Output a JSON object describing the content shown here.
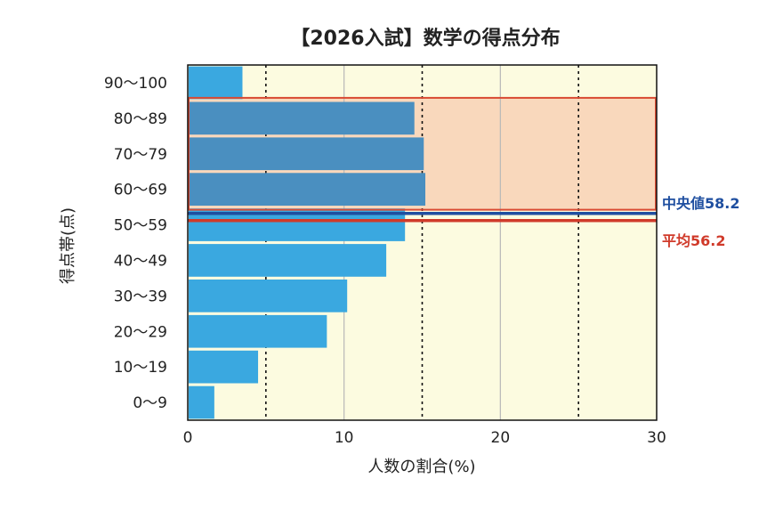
{
  "chart_data": {
    "type": "bar",
    "orientation": "horizontal",
    "title": "【2026入試】数学の得点分布",
    "xlabel": "人数の割合(%)",
    "ylabel": "得点帯(点)",
    "xlim": [
      0,
      30
    ],
    "x_ticks": [
      "0",
      "10",
      "20",
      "30"
    ],
    "categories": [
      "0〜9",
      "10〜19",
      "20〜29",
      "30〜39",
      "40〜49",
      "50〜59",
      "60〜69",
      "70〜79",
      "80〜89",
      "90〜100"
    ],
    "values": [
      1.7,
      4.5,
      8.9,
      10.2,
      12.7,
      13.9,
      15.2,
      15.1,
      14.5,
      3.5
    ],
    "highlight_categories": [
      "60〜69",
      "70〜79",
      "80〜89"
    ],
    "grid": true,
    "reference_lines": [
      {
        "label": "中央値58.2",
        "value": 58.2,
        "color": "#1f4fa0"
      },
      {
        "label": "平均56.2",
        "value": 56.2,
        "color": "#d03a2a"
      }
    ],
    "colors": {
      "bar": "#3aa8e0",
      "bar_highlight": "#4a8fc0",
      "plot_bg": "#fcfbe0",
      "highlight_band": "#f9d8bc",
      "highlight_border": "#d94a32"
    }
  }
}
